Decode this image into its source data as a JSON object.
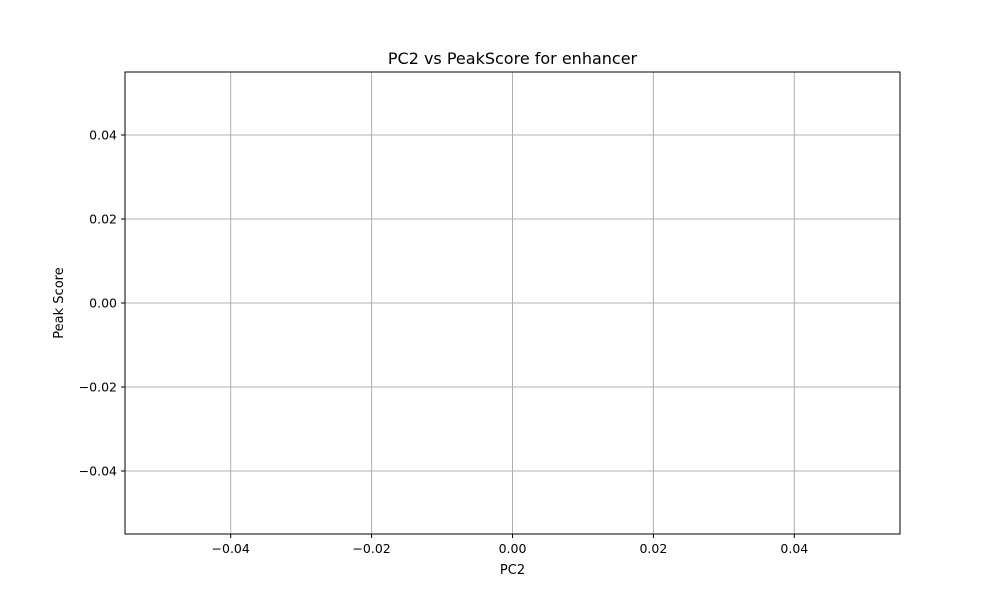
{
  "chart_data": {
    "type": "scatter",
    "title": "PC2 vs PeakScore for enhancer",
    "xlabel": "PC2",
    "ylabel": "Peak Score",
    "xlim": [
      -0.055,
      0.055
    ],
    "ylim": [
      -0.055,
      0.055
    ],
    "xticks": [
      -0.04,
      -0.02,
      0.0,
      0.02,
      0.04
    ],
    "yticks": [
      -0.04,
      -0.02,
      0.0,
      0.02,
      0.04
    ],
    "xtick_labels": [
      "−0.04",
      "−0.02",
      "0.00",
      "0.02",
      "0.04"
    ],
    "ytick_labels": [
      "−0.04",
      "−0.02",
      "0.00",
      "0.02",
      "0.04"
    ],
    "grid": true,
    "series": [
      {
        "name": "enhancer",
        "x": [],
        "y": []
      }
    ]
  }
}
